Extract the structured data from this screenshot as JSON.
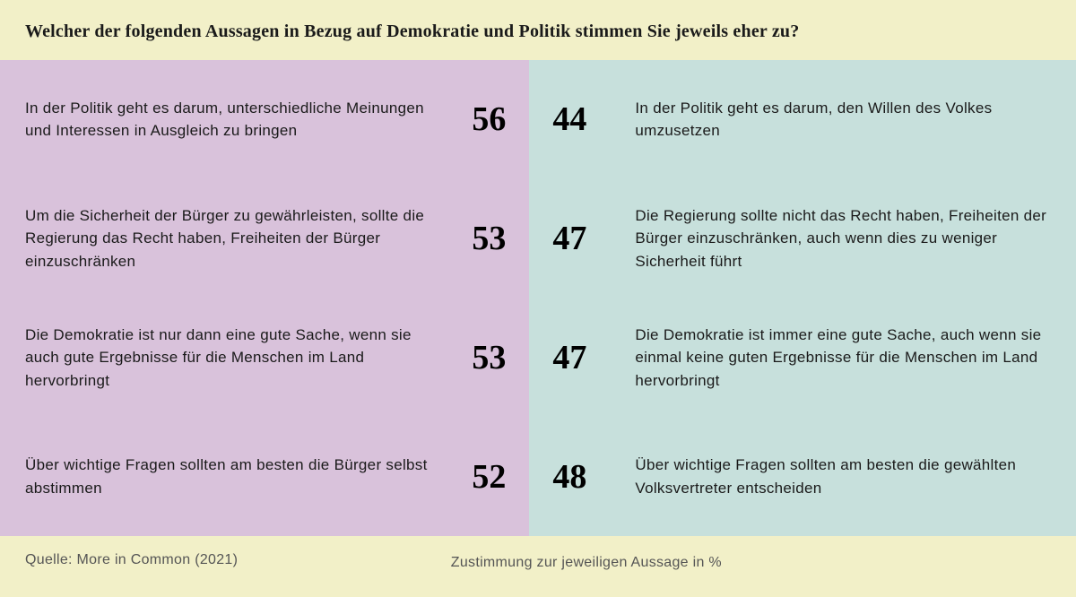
{
  "type": "comparison-table",
  "background_color": "#f2f0c8",
  "left_color": "#d9c2db",
  "right_color": "#c7e0dc",
  "title": "Welcher der folgenden Aussagen in Bezug auf Demokratie und Politik stimmen Sie jeweils eher zu?",
  "title_fontsize": 20,
  "title_color": "#1a1a1a",
  "statement_fontsize": 17,
  "statement_color": "#1a1a1a",
  "number_fontsize": 38,
  "number_color": "#000000",
  "footer_fontsize": 16,
  "footer_color": "#555555",
  "left_width_pct": 49.2,
  "rows": [
    {
      "left_text": "In der Politik geht es darum, unterschiedliche Meinungen und Interessen in Ausgleich zu bringen",
      "left_value": 56,
      "right_value": 44,
      "right_text": "In der Politik geht es darum, den Willen des Volkes umzusetzen"
    },
    {
      "left_text": "Um die Sicherheit der Bürger zu gewährleisten, sollte die Regierung das Recht haben, Freihei­ten der Bürger einzuschränken",
      "left_value": 53,
      "right_value": 47,
      "right_text": "Die Regierung sollte nicht das Recht haben, Freiheiten der Bürger einzuschränken, auch wenn dies zu weniger Sicherheit führt"
    },
    {
      "left_text": "Die Demokratie ist nur dann eine gute Sache, wenn sie auch gute Ergebnisse für die Menschen im Land hervorbringt",
      "left_value": 53,
      "right_value": 47,
      "right_text": "Die Demokratie ist immer eine gute Sache, auch wenn sie einmal keine guten Ergebnisse für die Menschen im Land hervorbringt"
    },
    {
      "left_text": "Über wichtige Fragen sollten am besten die Bürger selbst abstimmen",
      "left_value": 52,
      "right_value": 48,
      "right_text": "Über wichtige Fragen sollten am besten die gewählten Volksvertreter entscheiden"
    }
  ],
  "source": "Quelle: More in Common (2021)",
  "legend": "Zustimmung zur jeweiligen Aussage in %"
}
